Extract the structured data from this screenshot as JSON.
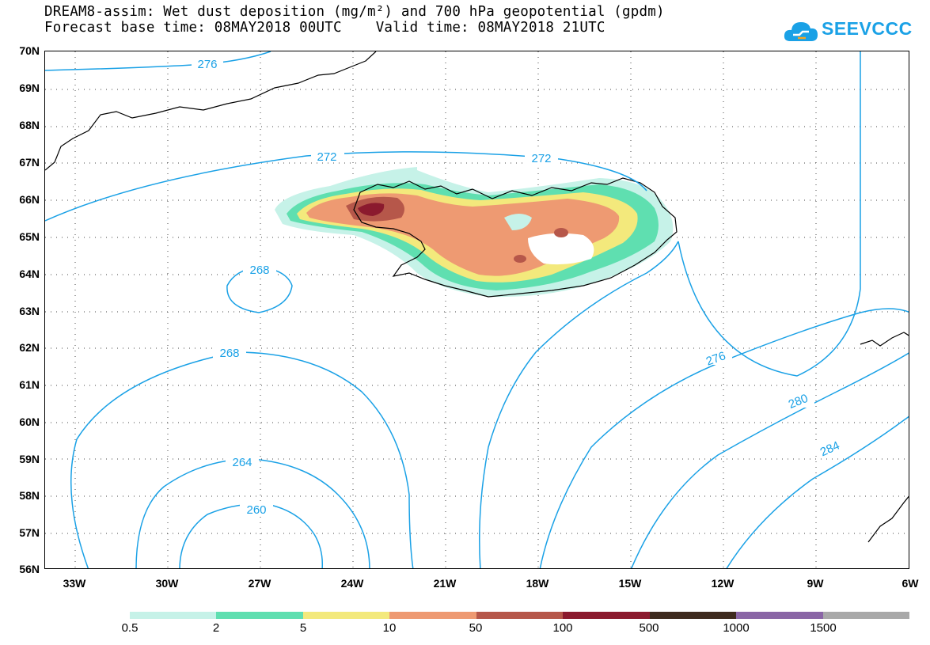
{
  "title": {
    "line1": "DREAM8-assim: Wet dust deposition (mg/m²) and 700 hPa geopotential (gpdm)",
    "line2": "Forecast base time: 08MAY2018 00UTC    Valid time: 08MAY2018 21UTC"
  },
  "logo": {
    "text": "SEEVCCC",
    "icon": "cloud-icon"
  },
  "map": {
    "lat_labels": [
      "70N",
      "69N",
      "68N",
      "67N",
      "66N",
      "65N",
      "64N",
      "63N",
      "62N",
      "61N",
      "60N",
      "59N",
      "58N",
      "57N",
      "56N"
    ],
    "lon_labels": [
      "33W",
      "30W",
      "27W",
      "24W",
      "21W",
      "18W",
      "15W",
      "12W",
      "9W",
      "6W"
    ],
    "contour_color": "#1aa1e6",
    "contour_labels": [
      "276",
      "272",
      "272",
      "268",
      "268",
      "264",
      "260",
      "276",
      "280",
      "284"
    ],
    "grid": "dotted"
  },
  "legend": {
    "colors": [
      "#c6f2e8",
      "#5fdfb0",
      "#f3e97c",
      "#ee9a72",
      "#b6574a",
      "#8b1a2e",
      "#3e2a1e",
      "#8a66a6",
      "#a9a9a9"
    ],
    "labels": [
      "0.5",
      "2",
      "5",
      "10",
      "50",
      "100",
      "500",
      "1000",
      "1500"
    ]
  }
}
